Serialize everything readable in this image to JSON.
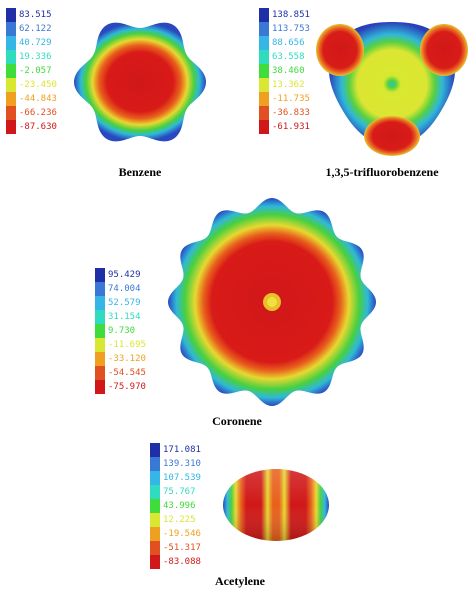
{
  "legend_colors": [
    "#1f2fa6",
    "#3a78d6",
    "#34b6e6",
    "#30dcc0",
    "#3fdc3c",
    "#d8e830",
    "#f0a020",
    "#e05020",
    "#d01818"
  ],
  "panels": [
    {
      "id": "benzene",
      "caption": "Benzene",
      "scale": [
        "83.515",
        "62.122",
        "40.729",
        "19.336",
        "-2.057",
        "-23.450",
        "-44.843",
        "-66.236",
        "-87.630"
      ]
    },
    {
      "id": "trifluorobenzene",
      "caption": "1,3,5-trifluorobenzene",
      "scale": [
        "138.851",
        "113.753",
        "88.656",
        "63.558",
        "38.460",
        "13.362",
        "-11.735",
        "-36.833",
        "-61.931"
      ]
    },
    {
      "id": "coronene",
      "caption": "Coronene",
      "scale": [
        "95.429",
        "74.004",
        "52.579",
        "31.154",
        "9.730",
        "-11.695",
        "-33.120",
        "-54.545",
        "-75.970"
      ]
    },
    {
      "id": "acetylene",
      "caption": "Acetylene",
      "scale": [
        "171.081",
        "139.310",
        "107.539",
        "75.767",
        "43.996",
        "12.225",
        "-19.546",
        "-51.317",
        "-83.088"
      ]
    }
  ]
}
